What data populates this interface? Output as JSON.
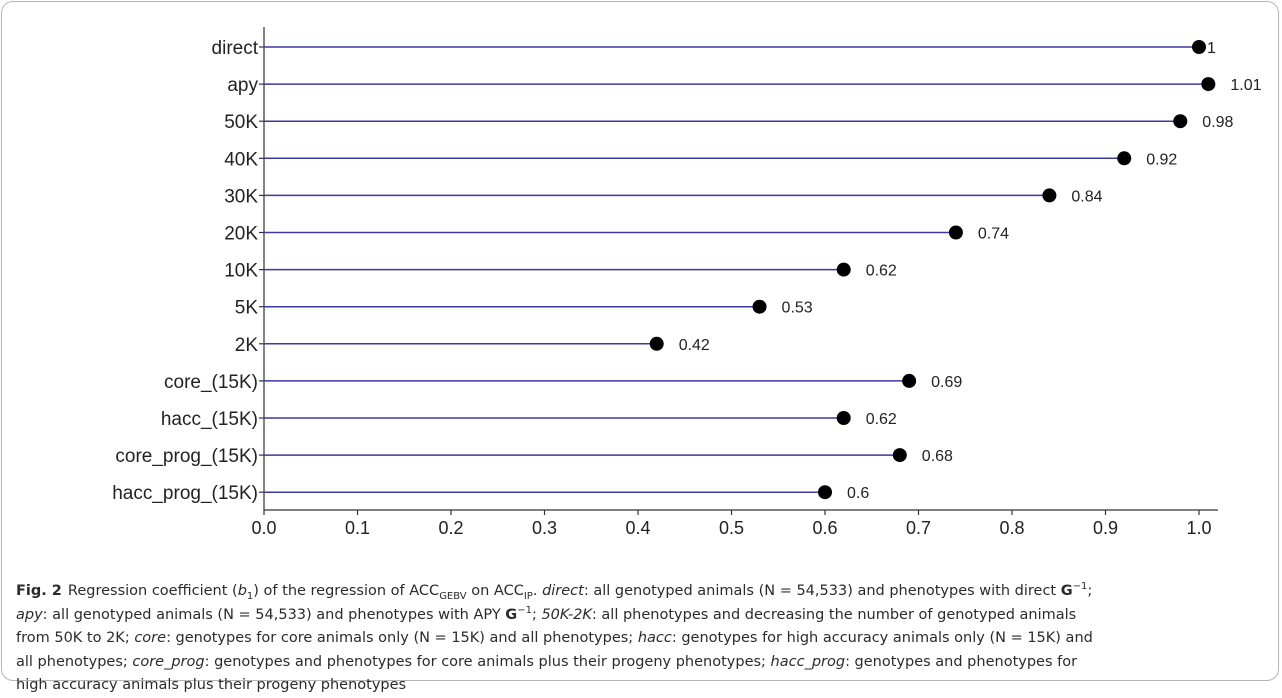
{
  "chart_data": {
    "type": "lollipop",
    "categories": [
      "direct",
      "apy",
      "50K",
      "40K",
      "30K",
      "20K",
      "10K",
      "5K",
      "2K",
      "core_(15K)",
      "hacc_(15K)",
      "core_prog_(15K)",
      "hacc_prog_(15K)"
    ],
    "values": [
      1,
      1.01,
      0.98,
      0.92,
      0.84,
      0.74,
      0.62,
      0.53,
      0.42,
      0.69,
      0.62,
      0.68,
      0.6
    ],
    "value_labels": [
      "1",
      "1.01",
      "0.98",
      "0.92",
      "0.84",
      "0.74",
      "0.62",
      "0.53",
      "0.42",
      "0.69",
      "0.62",
      "0.68",
      "0.6"
    ],
    "x_ticks": [
      "0.0",
      "0.1",
      "0.2",
      "0.3",
      "0.4",
      "0.5",
      "0.6",
      "0.7",
      "0.8",
      "0.9",
      "1.0"
    ],
    "xlim": [
      0,
      1.07
    ],
    "grid": false,
    "stem_color": "#3a3aa0",
    "dot_color": "#000000",
    "axis_color": "#333333"
  },
  "caption": {
    "fig_label": "Fig. 2",
    "l1_a": "Regression coefficient (",
    "l1_b": "b",
    "l1_b_sub": "1",
    "l1_c": ") of the regression of ACC",
    "l1_sub1": "GEBV",
    "l1_d": " on ACC",
    "l1_sub2": "IP",
    "l1_e": ". ",
    "l1_f": "direct",
    "l1_g": ": all genotyped animals (N = 54,533) and phenotypes with direct ",
    "l1_G": "G",
    "l1_sup": "−1",
    "l1_h": ";",
    "l2_a": "apy",
    "l2_b": ": all genotyped animals (N = 54,533) and phenotypes with APY ",
    "l2_G": "G",
    "l2_sup": "−1",
    "l2_c": "; ",
    "l2_d": "50K-2K",
    "l2_e": ": all phenotypes and decreasing the number of genotyped animals",
    "l3_a": "from 50K to 2K; ",
    "l3_b": "core",
    "l3_c": ": genotypes for core animals only (N = 15K) and all phenotypes; ",
    "l3_d": "hacc",
    "l3_e": ": genotypes for high accuracy animals only (N = 15K) and",
    "l4_a": "all phenotypes; ",
    "l4_b": "core_prog",
    "l4_c": ": genotypes and phenotypes for core animals plus their progeny phenotypes; ",
    "l4_d": "hacc_prog",
    "l4_e": ": genotypes and phenotypes for",
    "l5_a": "high accuracy animals plus their progeny phenotypes"
  }
}
